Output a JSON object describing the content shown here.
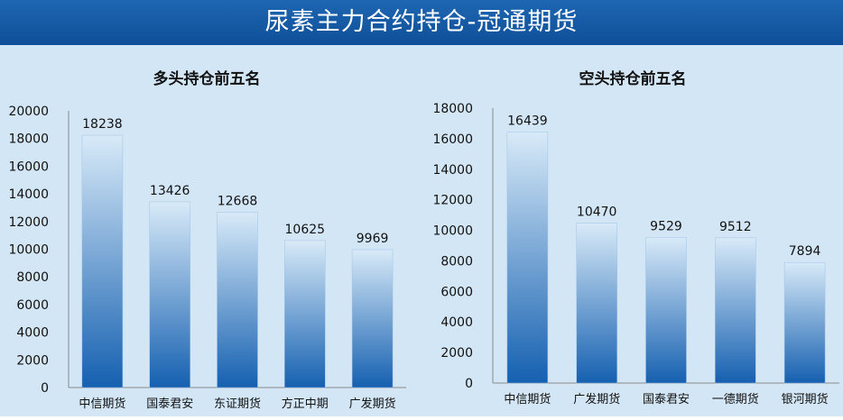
{
  "header": {
    "title": "尿素主力合约持仓-冠通期货"
  },
  "colors": {
    "header_bg": "#1464b4",
    "panel_bg": "#d3e6f6",
    "bar_top": "#d8eaf8",
    "bar_bottom": "#1560b0"
  },
  "chart_data": [
    {
      "type": "bar",
      "title": "多头持仓前五名",
      "categories": [
        "中信期货",
        "国泰君安",
        "东证期货",
        "方正中期",
        "广发期货"
      ],
      "values": [
        18238,
        13426,
        12668,
        10625,
        9969
      ],
      "ylim": [
        0,
        20000
      ],
      "yticks": [
        0,
        2000,
        4000,
        6000,
        8000,
        10000,
        12000,
        14000,
        16000,
        18000,
        20000
      ],
      "xlabel": "",
      "ylabel": "",
      "grid": false,
      "legend": "none"
    },
    {
      "type": "bar",
      "title": "空头持仓前五名",
      "categories": [
        "中信期货",
        "广发期货",
        "国泰君安",
        "一德期货",
        "银河期货"
      ],
      "values": [
        16439,
        10470,
        9529,
        9512,
        7894
      ],
      "ylim": [
        0,
        18000
      ],
      "yticks": [
        0,
        2000,
        4000,
        6000,
        8000,
        10000,
        12000,
        14000,
        16000,
        18000
      ],
      "xlabel": "",
      "ylabel": "",
      "grid": false,
      "legend": "none"
    }
  ]
}
